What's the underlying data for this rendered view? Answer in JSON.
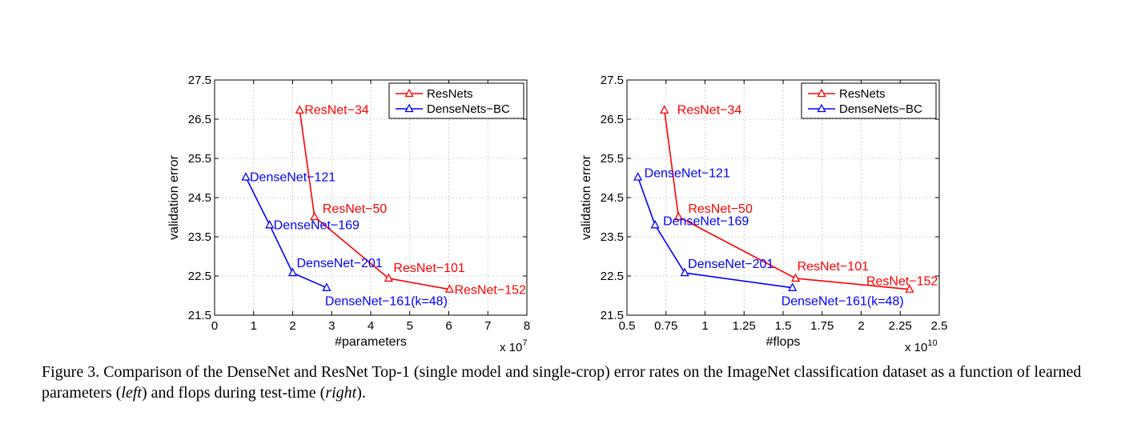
{
  "colors": {
    "resnet": "#ff0000",
    "densenet": "#0000ff"
  },
  "chart_data": [
    {
      "type": "line",
      "xlabel": "#parameters",
      "ylabel": "validation error",
      "x_multiplier_label": "x 10",
      "x_multiplier_exp": "7",
      "xlim": [
        0,
        8
      ],
      "ylim": [
        21.5,
        27.5
      ],
      "xticks": [
        0,
        1,
        2,
        3,
        4,
        5,
        6,
        7,
        8
      ],
      "xtick_labels": [
        "0",
        "1",
        "2",
        "3",
        "4",
        "5",
        "6",
        "7",
        "8"
      ],
      "yticks": [
        21.5,
        22.5,
        23.5,
        24.5,
        25.5,
        26.5,
        27.5
      ],
      "ytick_labels": [
        "21.5",
        "22.5",
        "23.5",
        "24.5",
        "25.5",
        "26.5",
        "27.5"
      ],
      "grid": true,
      "legend": "top-right",
      "series": [
        {
          "name": "ResNets",
          "color": "#ff0000",
          "marker": "triangle",
          "points": [
            {
              "x": 2.18,
              "y": 26.73,
              "label": "ResNet−34"
            },
            {
              "x": 2.56,
              "y": 24.01,
              "label": "ResNet−50"
            },
            {
              "x": 4.46,
              "y": 22.44,
              "label": "ResNet−101"
            },
            {
              "x": 6.02,
              "y": 22.16,
              "label": "ResNet−152"
            }
          ]
        },
        {
          "name": "DenseNets−BC",
          "color": "#0000ff",
          "marker": "triangle",
          "points": [
            {
              "x": 0.8,
              "y": 25.02,
              "label": "DenseNet−121"
            },
            {
              "x": 1.41,
              "y": 23.8,
              "label": "DenseNet−169"
            },
            {
              "x": 2.0,
              "y": 22.58,
              "label": "DenseNet−201"
            },
            {
              "x": 2.87,
              "y": 22.2,
              "label": "DenseNet−161(k=48)"
            }
          ]
        }
      ]
    },
    {
      "type": "line",
      "xlabel": "#flops",
      "ylabel": "validation error",
      "x_multiplier_label": "x 10",
      "x_multiplier_exp": "10",
      "xlim": [
        0.5,
        2.5
      ],
      "ylim": [
        21.5,
        27.5
      ],
      "xticks": [
        0.5,
        0.75,
        1,
        1.25,
        1.5,
        1.75,
        2,
        2.25,
        2.5
      ],
      "xtick_labels": [
        "0.5",
        "0.75",
        "1",
        "1.25",
        "1.5",
        "1.75",
        "2",
        "2.25",
        "2.5"
      ],
      "yticks": [
        21.5,
        22.5,
        23.5,
        24.5,
        25.5,
        26.5,
        27.5
      ],
      "ytick_labels": [
        "21.5",
        "22.5",
        "23.5",
        "24.5",
        "25.5",
        "26.5",
        "27.5"
      ],
      "grid": true,
      "legend": "top-right",
      "series": [
        {
          "name": "ResNets",
          "color": "#ff0000",
          "marker": "triangle",
          "points": [
            {
              "x": 0.74,
              "y": 26.73,
              "label": "ResNet−34"
            },
            {
              "x": 0.83,
              "y": 24.01,
              "label": "ResNet−50"
            },
            {
              "x": 1.58,
              "y": 22.44,
              "label": "ResNet−101"
            },
            {
              "x": 2.31,
              "y": 22.16,
              "label": "ResNet−152"
            }
          ]
        },
        {
          "name": "DenseNets−BC",
          "color": "#0000ff",
          "marker": "triangle",
          "points": [
            {
              "x": 0.57,
              "y": 25.02,
              "label": "DenseNet−121"
            },
            {
              "x": 0.68,
              "y": 23.8,
              "label": "DenseNet−169"
            },
            {
              "x": 0.87,
              "y": 22.58,
              "label": "DenseNet−201"
            },
            {
              "x": 1.56,
              "y": 22.2,
              "label": "DenseNet−161(k=48)"
            }
          ]
        }
      ]
    }
  ],
  "caption": {
    "prefix": "Figure 3. Comparison of the DenseNet and ResNet Top-1 (single model and single-crop) error rates on the ImageNet classification dataset as a function of learned parameters (",
    "left_word": "left",
    "middle": ") and flops during test-time (",
    "right_word": "right",
    "suffix": ")."
  }
}
